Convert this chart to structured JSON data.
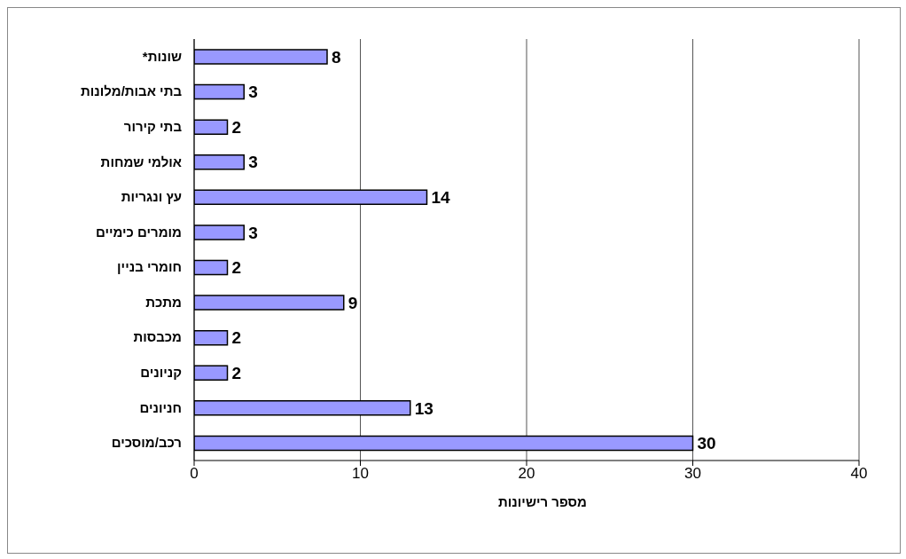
{
  "chart_data": {
    "type": "bar",
    "orientation": "horizontal",
    "xlabel": "מספר רישיונות",
    "categories": [
      "שונות*",
      "בתי אבות/מלונות",
      "בתי קירור",
      "אולמי שמחות",
      "עץ ונגריות",
      "מומרים כימיים",
      "חומרי בניין",
      "מתכת",
      "מכבסות",
      "קניונים",
      "חניונים",
      "רכב/מוסכים"
    ],
    "values": [
      8,
      3,
      2,
      3,
      14,
      3,
      2,
      9,
      2,
      2,
      13,
      30
    ],
    "color": "#9999ff",
    "xlim": [
      0,
      40
    ],
    "xticks": [
      0,
      10,
      20,
      30,
      40
    ],
    "grid": "x",
    "data_labels": true
  }
}
